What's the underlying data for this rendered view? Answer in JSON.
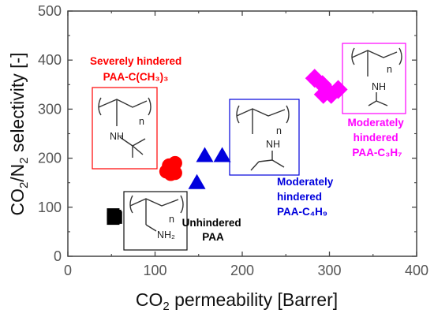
{
  "chart_data": {
    "type": "scatter",
    "xlabel": "CO₂ permeability [Barrer]",
    "ylabel": "CO₂/N₂ selectivity [-]",
    "xlim": [
      0,
      400
    ],
    "ylim": [
      0,
      500
    ],
    "xticks": [
      "0",
      "100",
      "200",
      "300",
      "400"
    ],
    "yticks": [
      "0",
      "100",
      "200",
      "300",
      "400",
      "500"
    ],
    "grid": false,
    "series": [
      {
        "name": "Unhindered PAA",
        "marker": "square",
        "color": "#000000",
        "points": [
          [
            52,
            85
          ],
          [
            54,
            82
          ],
          [
            52,
            77
          ],
          [
            55,
            79
          ]
        ]
      },
      {
        "name": "Severely hindered PAA-C(CH₃)₃",
        "marker": "circle",
        "color": "#ff0000",
        "points": [
          [
            113,
            173
          ],
          [
            118,
            168
          ],
          [
            123,
            170
          ],
          [
            118,
            180
          ],
          [
            123,
            190
          ],
          [
            116,
            185
          ]
        ]
      },
      {
        "name": "Moderately hindered PAA-C₄H₉",
        "marker": "triangle",
        "color": "#0000dd",
        "points": [
          [
            157,
            205
          ],
          [
            177,
            205
          ],
          [
            148,
            150
          ]
        ]
      },
      {
        "name": "Moderately hindered PAA-C₃H₇",
        "marker": "diamond",
        "color": "#ff00ff",
        "points": [
          [
            283,
            363
          ],
          [
            292,
            350
          ],
          [
            298,
            337
          ],
          [
            310,
            340
          ],
          [
            302,
            330
          ],
          [
            293,
            330
          ]
        ]
      }
    ],
    "annotations": [
      {
        "lines": [
          "Severely hindered",
          "PAA-C(CH₃)₃"
        ],
        "color": "#ff0000"
      },
      {
        "lines": [
          "Moderately",
          "hindered",
          "PAA-C₃H₇"
        ],
        "color": "#ff00ff"
      },
      {
        "lines": [
          "Moderately",
          "hindered",
          "PAA-C₄H₉"
        ],
        "color": "#0000dd"
      },
      {
        "lines": [
          "Unhindered",
          "PAA"
        ],
        "color": "#000000"
      }
    ],
    "structure_labels": {
      "repeat": "n",
      "amine": "NH",
      "primary_amine": "NH₂"
    }
  }
}
